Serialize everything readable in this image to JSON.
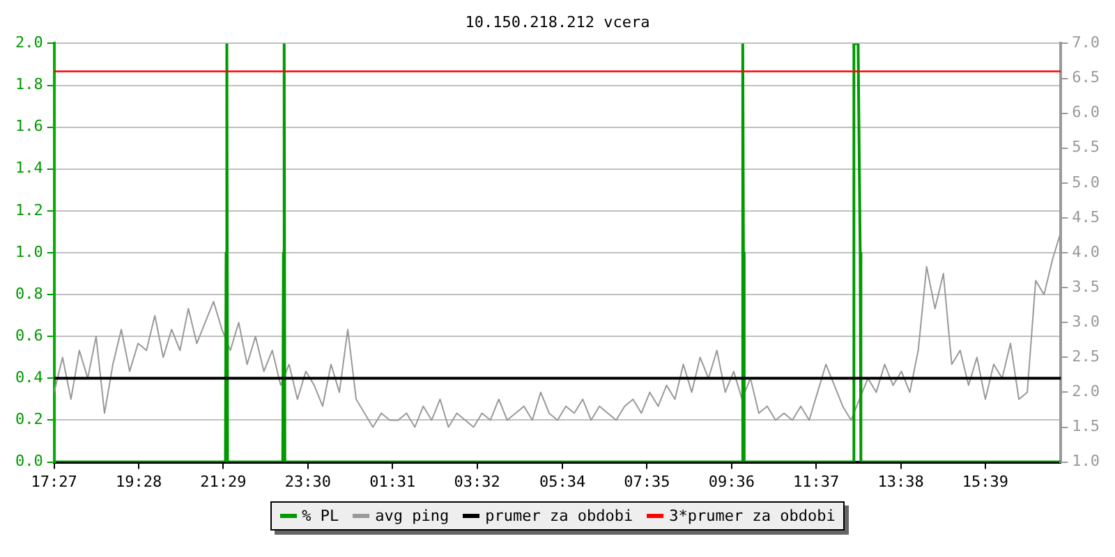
{
  "chart_data": {
    "type": "line",
    "title": "10.150.218.212 vcera",
    "xlim": [
      "--01-01T17:27",
      "--01-02T17:27"
    ],
    "xticks": [
      {
        "value": "--01-01T17:27",
        "label": "17:27"
      },
      {
        "value": "--01-01T19:28",
        "label": "19:28"
      },
      {
        "value": "--01-01T21:29",
        "label": "21:29"
      },
      {
        "value": "--01-01T23:30",
        "label": "23:30"
      },
      {
        "value": "--01-02T01:31",
        "label": "01:31"
      },
      {
        "value": "--01-02T03:32",
        "label": "03:32"
      },
      {
        "value": "--01-02T05:34",
        "label": "05:34"
      },
      {
        "value": "--01-02T07:35",
        "label": "07:35"
      },
      {
        "value": "--01-02T09:36",
        "label": "09:36"
      },
      {
        "value": "--01-02T11:37",
        "label": "11:37"
      },
      {
        "value": "--01-02T13:38",
        "label": "13:38"
      },
      {
        "value": "--01-02T15:39",
        "label": "15:39"
      }
    ],
    "ylim": [
      0,
      2
    ],
    "yticks": [
      {
        "value": 0,
        "label": "0.0"
      },
      {
        "value": 0.2,
        "label": "0.2"
      },
      {
        "value": 0.4,
        "label": "0.4"
      },
      {
        "value": 0.6,
        "label": "0.6"
      },
      {
        "value": 0.8,
        "label": "0.8"
      },
      {
        "value": 1,
        "label": "1.0"
      },
      {
        "value": 1.2,
        "label": "1.2"
      },
      {
        "value": 1.4,
        "label": "1.4"
      },
      {
        "value": 1.6,
        "label": "1.6"
      },
      {
        "value": 1.8,
        "label": "1.8"
      },
      {
        "value": 2,
        "label": "2.0"
      }
    ],
    "y2lim": [
      1,
      7
    ],
    "y2ticks": [
      {
        "value": 1,
        "label": "1.0"
      },
      {
        "value": 1.5,
        "label": "1.5"
      },
      {
        "value": 2,
        "label": "2.0"
      },
      {
        "value": 2.5,
        "label": "2.5"
      },
      {
        "value": 3,
        "label": "3.0"
      },
      {
        "value": 3.5,
        "label": "3.5"
      },
      {
        "value": 4,
        "label": "4.0"
      },
      {
        "value": 4.5,
        "label": "4.5"
      },
      {
        "value": 5,
        "label": "5.0"
      },
      {
        "value": 5.5,
        "label": "5.5"
      },
      {
        "value": 6,
        "label": "6.0"
      },
      {
        "value": 6.5,
        "label": "6.5"
      },
      {
        "value": 7,
        "label": "7.0"
      }
    ],
    "grid": "y",
    "legend": "bottom",
    "marker": "none",
    "line_style": "solid",
    "series": [
      {
        "name": "% PL",
        "type": "line",
        "color": "#009900",
        "x": [
          "--01-01T17:27",
          "--01-01T21:32",
          "--01-01T21:33",
          "--01-01T21:34",
          "--01-01T21:35",
          "--01-01T22:54",
          "--01-01T22:55",
          "--01-01T22:56",
          "--01-01T22:57",
          "--01-02T09:51",
          "--01-02T09:52",
          "--01-02T09:53",
          "--01-02T09:54",
          "--01-02T12:30",
          "--01-02T12:31",
          "--01-02T12:33",
          "--01-02T12:35",
          "--01-02T12:37",
          "--01-02T12:40",
          "--01-02T12:41",
          "--01-02T17:27"
        ],
        "values": [
          0,
          0,
          1.0,
          2.0,
          0,
          0,
          1.0,
          2.0,
          0,
          0,
          2.0,
          1.0,
          0,
          0,
          2.0,
          2.0,
          2.0,
          2.0,
          1.0,
          0,
          0
        ]
      },
      {
        "name": "avg ping",
        "type": "line",
        "axis": "y2",
        "color": "#999999",
        "x": [
          "--01-01T17:27",
          "--01-01T17:39",
          "--01-01T17:51",
          "--01-01T18:03",
          "--01-01T18:15",
          "--01-01T18:27",
          "--01-01T18:39",
          "--01-01T18:51",
          "--01-01T19:03",
          "--01-01T19:15",
          "--01-01T19:27",
          "--01-01T19:39",
          "--01-01T19:51",
          "--01-01T20:03",
          "--01-01T20:15",
          "--01-01T20:27",
          "--01-01T20:39",
          "--01-01T20:51",
          "--01-01T21:03",
          "--01-01T21:15",
          "--01-01T21:27",
          "--01-01T21:39",
          "--01-01T21:51",
          "--01-01T22:03",
          "--01-01T22:15",
          "--01-01T22:27",
          "--01-01T22:39",
          "--01-01T22:51",
          "--01-01T23:03",
          "--01-01T23:15",
          "--01-01T23:27",
          "--01-01T23:39",
          "--01-01T23:51",
          "--01-02T00:03",
          "--01-02T00:15",
          "--01-02T00:27",
          "--01-02T00:39",
          "--01-02T00:51",
          "--01-02T01:03",
          "--01-02T01:15",
          "--01-02T01:27",
          "--01-02T01:39",
          "--01-02T01:51",
          "--01-02T02:03",
          "--01-02T02:15",
          "--01-02T02:27",
          "--01-02T02:39",
          "--01-02T02:51",
          "--01-02T03:03",
          "--01-02T03:15",
          "--01-02T03:27",
          "--01-02T03:39",
          "--01-02T03:51",
          "--01-02T04:03",
          "--01-02T04:15",
          "--01-02T04:27",
          "--01-02T04:39",
          "--01-02T04:51",
          "--01-02T05:03",
          "--01-02T05:15",
          "--01-02T05:27",
          "--01-02T05:39",
          "--01-02T05:51",
          "--01-02T06:03",
          "--01-02T06:15",
          "--01-02T06:27",
          "--01-02T06:39",
          "--01-02T06:51",
          "--01-02T07:03",
          "--01-02T07:15",
          "--01-02T07:27",
          "--01-02T07:39",
          "--01-02T07:51",
          "--01-02T08:03",
          "--01-02T08:15",
          "--01-02T08:27",
          "--01-02T08:39",
          "--01-02T08:51",
          "--01-02T09:03",
          "--01-02T09:15",
          "--01-02T09:27",
          "--01-02T09:39",
          "--01-02T09:51",
          "--01-02T10:03",
          "--01-02T10:15",
          "--01-02T10:27",
          "--01-02T10:39",
          "--01-02T10:51",
          "--01-02T11:03",
          "--01-02T11:15",
          "--01-02T11:27",
          "--01-02T11:39",
          "--01-02T11:51",
          "--01-02T12:03",
          "--01-02T12:15",
          "--01-02T12:27",
          "--01-02T12:39",
          "--01-02T12:51",
          "--01-02T13:03",
          "--01-02T13:15",
          "--01-02T13:27",
          "--01-02T13:39",
          "--01-02T13:51",
          "--01-02T14:03",
          "--01-02T14:15",
          "--01-02T14:27",
          "--01-02T14:39",
          "--01-02T14:51",
          "--01-02T15:03",
          "--01-02T15:15",
          "--01-02T15:27",
          "--01-02T15:39",
          "--01-02T15:51",
          "--01-02T16:03",
          "--01-02T16:15",
          "--01-02T16:27",
          "--01-02T16:39",
          "--01-02T16:51",
          "--01-02T17:03",
          "--01-02T17:15",
          "--01-02T17:27"
        ],
        "values": [
          2.0,
          2.5,
          1.9,
          2.6,
          2.2,
          2.8,
          1.7,
          2.4,
          2.9,
          2.3,
          2.7,
          2.6,
          3.1,
          2.5,
          2.9,
          2.6,
          3.2,
          2.7,
          3.0,
          3.3,
          2.9,
          2.6,
          3.0,
          2.4,
          2.8,
          2.3,
          2.6,
          2.1,
          2.4,
          1.9,
          2.3,
          2.1,
          1.8,
          2.4,
          2.0,
          2.9,
          1.9,
          1.7,
          1.5,
          1.7,
          1.6,
          1.6,
          1.7,
          1.5,
          1.8,
          1.6,
          1.9,
          1.5,
          1.7,
          1.6,
          1.5,
          1.7,
          1.6,
          1.9,
          1.6,
          1.7,
          1.8,
          1.6,
          2.0,
          1.7,
          1.6,
          1.8,
          1.7,
          1.9,
          1.6,
          1.8,
          1.7,
          1.6,
          1.8,
          1.9,
          1.7,
          2.0,
          1.8,
          2.1,
          1.9,
          2.4,
          2.0,
          2.5,
          2.2,
          2.6,
          2.0,
          2.3,
          1.9,
          2.2,
          1.7,
          1.8,
          1.6,
          1.7,
          1.6,
          1.8,
          1.6,
          2.0,
          2.4,
          2.1,
          1.8,
          1.6,
          1.9,
          2.2,
          2.0,
          2.4,
          2.1,
          2.3,
          2.0,
          2.6,
          3.8,
          3.2,
          3.7,
          2.4,
          2.6,
          2.1,
          2.5,
          1.9,
          2.4,
          2.2,
          2.7,
          1.9,
          2.0,
          3.6,
          3.4,
          3.9,
          4.3
        ]
      }
    ],
    "ref_lines": [
      {
        "axis": "y2",
        "value": 2.2,
        "label": "prumer za obdobi",
        "color": "#000000"
      },
      {
        "axis": "y2",
        "value": 6.6,
        "label": "3*prumer za obdobi",
        "color": "#ff0000"
      }
    ]
  }
}
